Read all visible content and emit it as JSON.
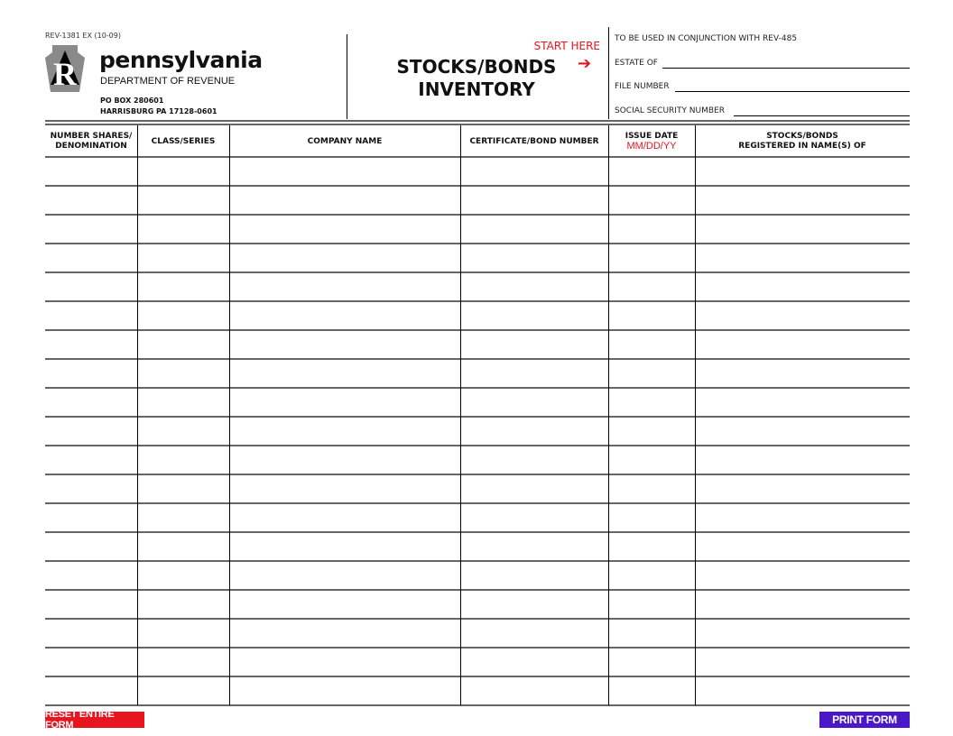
{
  "form_number": "REV-1381 EX (10-09)",
  "agency": {
    "name": "pennsylvania",
    "department": "DEPARTMENT OF REVENUE",
    "address_line1": "PO BOX 280601",
    "address_line2": "HARRISBURG PA 17128-0601",
    "logo_letter": "R"
  },
  "title": {
    "start_here": "START HERE",
    "line1": "STOCKS/BONDS",
    "line2": "INVENTORY",
    "arrow": "➔"
  },
  "fields": {
    "conjunction": "TO BE USED IN CONJUNCTION WITH REV-485",
    "estate_of": "ESTATE OF",
    "estate_value": "",
    "file_number": "FILE NUMBER",
    "file_value": "",
    "ssn": "SOCIAL SECURITY NUMBER",
    "ssn_value": ""
  },
  "table": {
    "headers": [
      {
        "line1": "NUMBER SHARES/",
        "line2": "DENOMINATION"
      },
      {
        "line1": "CLASS/SERIES",
        "line2": ""
      },
      {
        "line1": "COMPANY NAME",
        "line2": ""
      },
      {
        "line1": "CERTIFICATE/BOND NUMBER",
        "line2": ""
      },
      {
        "line1": "ISSUE DATE",
        "line2": "MM/DD/YY"
      },
      {
        "line1": "STOCKS/BONDS",
        "line2": "REGISTERED IN NAME(S) OF"
      }
    ]
  },
  "buttons": {
    "reset": "RESET ENTIRE FORM",
    "print": "PRINT FORM"
  },
  "colors": {
    "red": "#e8141e",
    "purple": "#4a18c8"
  }
}
